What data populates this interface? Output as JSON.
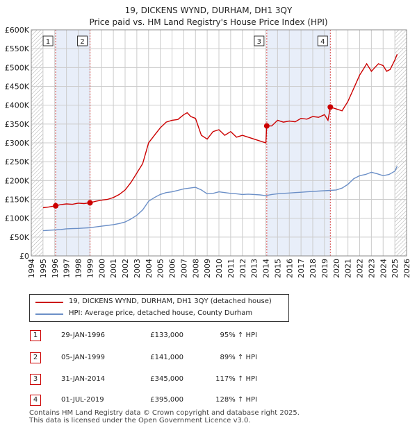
{
  "header": {
    "title": "19, DICKENS WYND, DURHAM, DH1 3QY",
    "subtitle": "Price paid vs. HM Land Registry's House Price Index (HPI)"
  },
  "legend": {
    "property_label": "19, DICKENS WYND, DURHAM, DH1 3QY (detached house)",
    "hpi_label": "HPI: Average price, detached house, County Durham"
  },
  "transactions": [
    {
      "num": "1",
      "date": "29-JAN-1996",
      "price": "£133,000",
      "hpi": "95% ↑ HPI"
    },
    {
      "num": "2",
      "date": "05-JAN-1999",
      "price": "£141,000",
      "hpi": "89% ↑ HPI"
    },
    {
      "num": "3",
      "date": "31-JAN-2014",
      "price": "£345,000",
      "hpi": "117% ↑ HPI"
    },
    {
      "num": "4",
      "date": "01-JUL-2019",
      "price": "£395,000",
      "hpi": "128% ↑ HPI"
    }
  ],
  "footer": {
    "line1": "Contains HM Land Registry data © Crown copyright and database right 2025.",
    "line2": "This data is licensed under the Open Government Licence v3.0."
  },
  "colors": {
    "property": "#cc0000",
    "hpi": "#6b8fc7",
    "shade": "#e8eef9",
    "grid": "#cccccc"
  },
  "chart_data": {
    "type": "line",
    "title": "19, DICKENS WYND, DURHAM, DH1 3QY",
    "subtitle": "Price paid vs. HM Land Registry's House Price Index (HPI)",
    "xlabel": "",
    "ylabel": "",
    "xlim": [
      1994,
      2026
    ],
    "ylim": [
      0,
      600000
    ],
    "x_ticks": [
      1994,
      1995,
      1996,
      1997,
      1998,
      1999,
      2000,
      2001,
      2002,
      2003,
      2004,
      2005,
      2006,
      2007,
      2008,
      2009,
      2010,
      2011,
      2012,
      2013,
      2014,
      2015,
      2016,
      2017,
      2018,
      2019,
      2020,
      2021,
      2022,
      2023,
      2024,
      2025,
      2026
    ],
    "y_ticks": [
      0,
      50000,
      100000,
      150000,
      200000,
      250000,
      300000,
      350000,
      400000,
      450000,
      500000,
      550000,
      600000
    ],
    "y_tick_labels": [
      "£0",
      "£50K",
      "£100K",
      "£150K",
      "£200K",
      "£250K",
      "£300K",
      "£350K",
      "£400K",
      "£450K",
      "£500K",
      "£550K",
      "£600K"
    ],
    "grid": true,
    "shaded_spans": [
      [
        1996.08,
        1999.01
      ],
      [
        2014.08,
        2019.5
      ]
    ],
    "hatched_regions": [
      [
        1994,
        1995
      ],
      [
        2025,
        2026
      ]
    ],
    "series": [
      {
        "name": "19, DICKENS WYND, DURHAM, DH1 3QY (detached house)",
        "x": [
          1995.0,
          1995.5,
          1996.08,
          1996.5,
          1997.0,
          1997.5,
          1998.0,
          1998.5,
          1999.01,
          1999.5,
          2000.0,
          2000.5,
          2001.0,
          2001.5,
          2002.0,
          2002.5,
          2003.0,
          2003.5,
          2004.0,
          2004.5,
          2005.0,
          2005.5,
          2006.0,
          2006.5,
          2007.0,
          2007.3,
          2007.6,
          2008.0,
          2008.5,
          2009.0,
          2009.5,
          2010.0,
          2010.5,
          2011.0,
          2011.5,
          2012.0,
          2012.5,
          2013.0,
          2013.5,
          2014.0,
          2014.08,
          2014.5,
          2015.0,
          2015.5,
          2016.0,
          2016.5,
          2017.0,
          2017.5,
          2018.0,
          2018.5,
          2019.0,
          2019.3,
          2019.5,
          2020.0,
          2020.5,
          2021.0,
          2021.5,
          2022.0,
          2022.3,
          2022.6,
          2023.0,
          2023.3,
          2023.6,
          2024.0,
          2024.3,
          2024.6,
          2025.0,
          2025.2
        ],
        "y": [
          128000,
          130000,
          133000,
          136000,
          138000,
          137000,
          140000,
          139000,
          141000,
          145000,
          148000,
          150000,
          155000,
          163000,
          175000,
          195000,
          220000,
          245000,
          300000,
          320000,
          340000,
          355000,
          360000,
          362000,
          375000,
          380000,
          370000,
          365000,
          320000,
          310000,
          330000,
          335000,
          320000,
          330000,
          315000,
          320000,
          315000,
          310000,
          305000,
          300000,
          345000,
          345000,
          360000,
          355000,
          358000,
          356000,
          365000,
          363000,
          370000,
          368000,
          375000,
          360000,
          395000,
          390000,
          385000,
          410000,
          445000,
          480000,
          495000,
          510000,
          490000,
          500000,
          510000,
          505000,
          490000,
          495000,
          520000,
          535000
        ]
      },
      {
        "name": "HPI: Average price, detached house, County Durham",
        "x": [
          1995.0,
          1995.5,
          1996.0,
          1996.5,
          1997.0,
          1997.5,
          1998.0,
          1998.5,
          1999.0,
          1999.5,
          2000.0,
          2000.5,
          2001.0,
          2001.5,
          2002.0,
          2002.5,
          2003.0,
          2003.5,
          2004.0,
          2004.5,
          2005.0,
          2005.5,
          2006.0,
          2006.5,
          2007.0,
          2007.5,
          2008.0,
          2008.5,
          2009.0,
          2009.5,
          2010.0,
          2010.5,
          2011.0,
          2011.5,
          2012.0,
          2012.5,
          2013.0,
          2013.5,
          2014.0,
          2014.5,
          2015.0,
          2015.5,
          2016.0,
          2016.5,
          2017.0,
          2017.5,
          2018.0,
          2018.5,
          2019.0,
          2019.5,
          2020.0,
          2020.5,
          2021.0,
          2021.5,
          2022.0,
          2022.5,
          2023.0,
          2023.5,
          2024.0,
          2024.5,
          2025.0,
          2025.2
        ],
        "y": [
          67000,
          68000,
          69000,
          70000,
          72000,
          72500,
          73000,
          74000,
          75000,
          77000,
          79000,
          81000,
          83000,
          86000,
          90000,
          98000,
          108000,
          122000,
          145000,
          155000,
          163000,
          168000,
          170000,
          174000,
          178000,
          180000,
          182000,
          175000,
          165000,
          166000,
          170000,
          168000,
          166000,
          165000,
          163000,
          164000,
          163000,
          162000,
          160000,
          163000,
          165000,
          166000,
          167000,
          168000,
          169000,
          170000,
          171000,
          172000,
          173000,
          174000,
          175000,
          180000,
          190000,
          205000,
          213000,
          216000,
          222000,
          218000,
          213000,
          216000,
          225000,
          238000
        ]
      }
    ],
    "points": [
      {
        "label": "1",
        "x": 1996.08,
        "y": 133000
      },
      {
        "label": "2",
        "x": 1999.01,
        "y": 141000
      },
      {
        "label": "3",
        "x": 2014.08,
        "y": 345000
      },
      {
        "label": "4",
        "x": 2019.5,
        "y": 395000
      }
    ]
  }
}
